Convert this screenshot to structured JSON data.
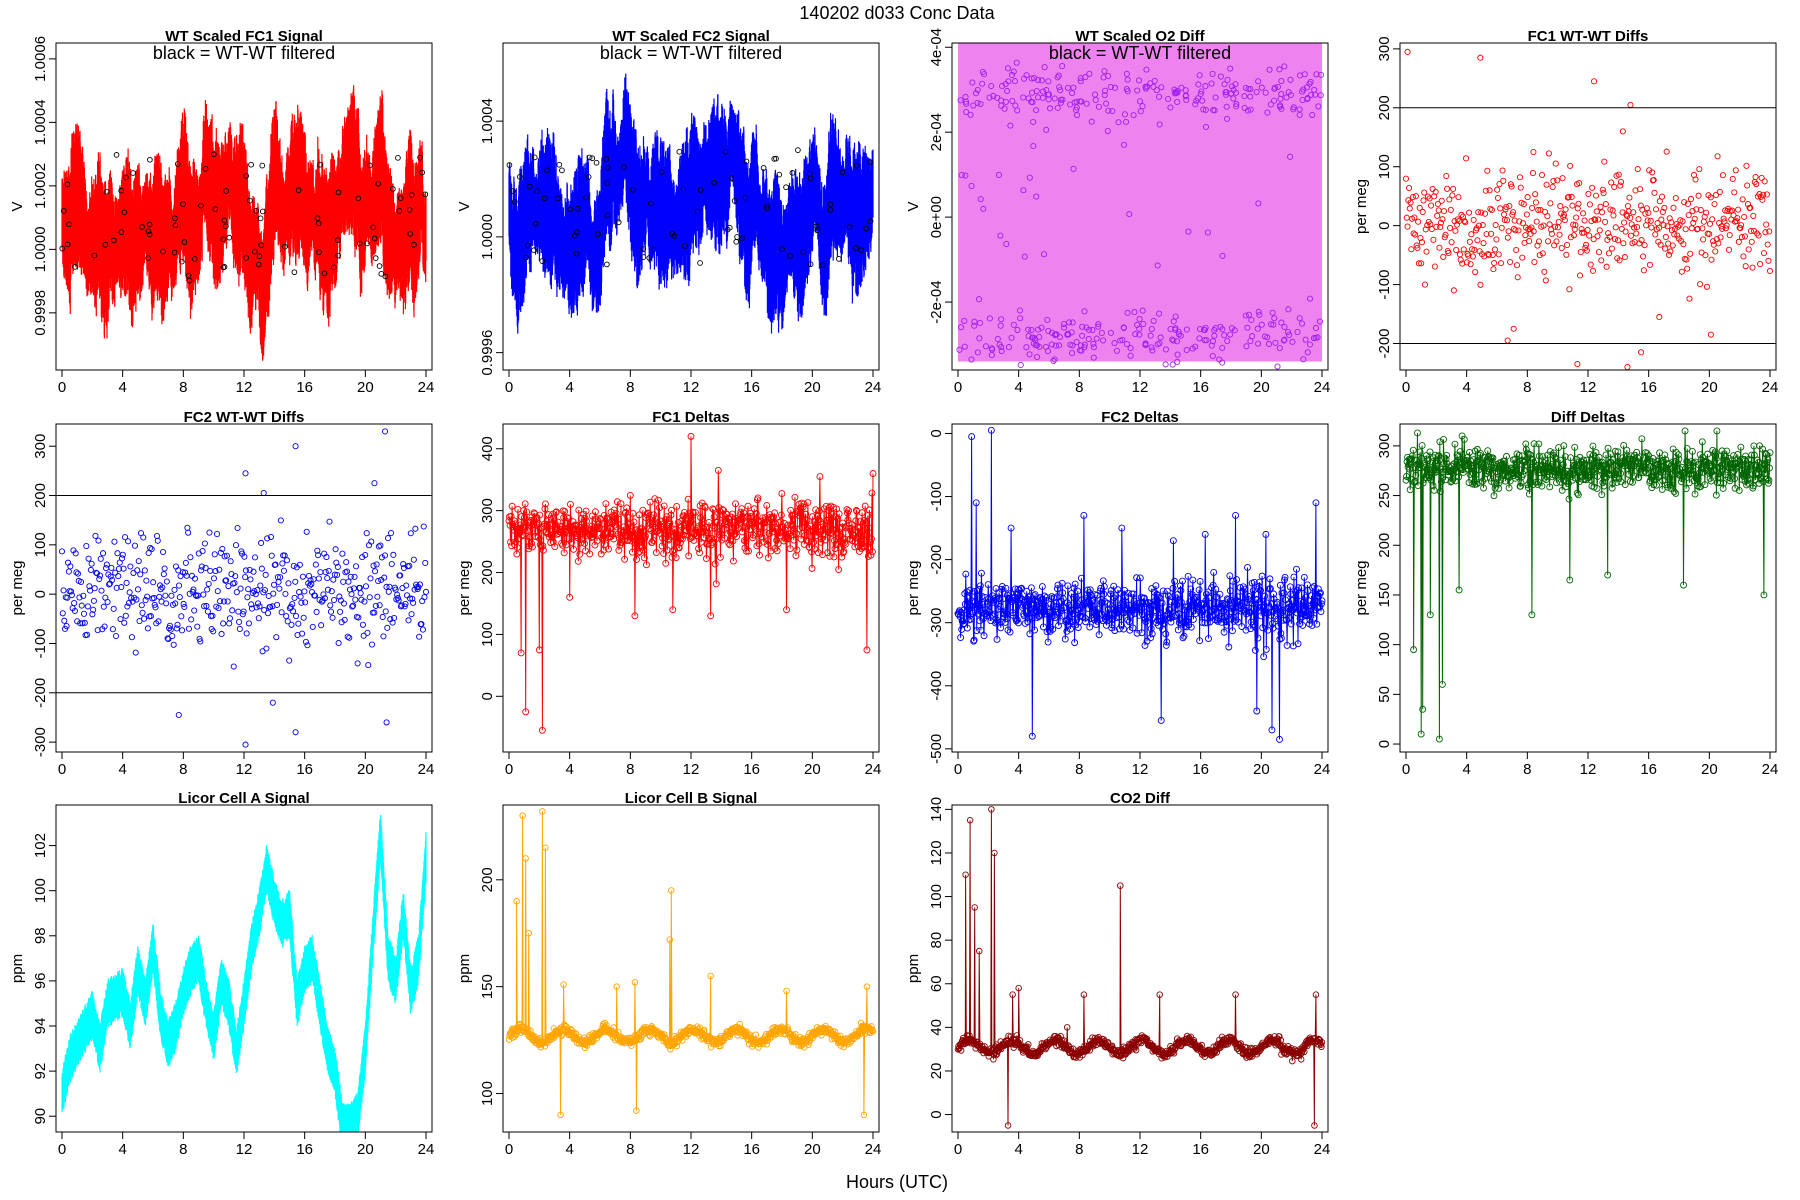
{
  "figure": {
    "title": "140202   d033   Conc Data",
    "xlabel": "Hours (UTC)"
  },
  "chart_data": [
    {
      "id": "p1",
      "type": "line",
      "title": "WT Scaled FC1 Signal",
      "overlay_text": "black = WT-WT filtered",
      "ylabel": "V",
      "xlim": [
        0,
        24
      ],
      "ylim": [
        0.99962,
        1.00065
      ],
      "xticks": [
        0,
        4,
        8,
        12,
        16,
        20,
        24
      ],
      "yticks": [
        0.9998,
        1.0,
        1.0002,
        1.0004,
        1.0006
      ],
      "ytick_labels": [
        "0.9998",
        "1.0000",
        "1.0002",
        "1.0004",
        "1.0006"
      ],
      "series": [
        {
          "color": "#ff0000",
          "style": "band",
          "center": 1.0001,
          "halfwidth": 0.00024,
          "noise": 7e-05,
          "seed": 11
        },
        {
          "color": "#000000",
          "style": "points",
          "center": 1.0001,
          "halfwidth": 0.0002,
          "n": 90,
          "seed": 12
        }
      ]
    },
    {
      "id": "p2",
      "type": "line",
      "title": "WT Scaled FC2 Signal",
      "overlay_text": "black = WT-WT filtered",
      "ylabel": "V",
      "xlim": [
        0,
        24
      ],
      "ylim": [
        0.99954,
        1.00067
      ],
      "xticks": [
        0,
        4,
        8,
        12,
        16,
        20,
        24
      ],
      "yticks": [
        0.9996,
        1.0,
        1.0004
      ],
      "ytick_labels": [
        "0.9996",
        "1.0000",
        "1.0004"
      ],
      "series": [
        {
          "color": "#0000ff",
          "style": "band",
          "center": 1.0001,
          "halfwidth": 0.00025,
          "noise": 8e-05,
          "seed": 21
        },
        {
          "color": "#000000",
          "style": "points",
          "center": 1.0001,
          "halfwidth": 0.0002,
          "n": 90,
          "seed": 22
        }
      ]
    },
    {
      "id": "p3",
      "type": "line",
      "title": "WT Scaled O2 Diff",
      "overlay_text": "black = WT-WT filtered",
      "ylabel": "V",
      "xlim": [
        0,
        24
      ],
      "ylim": [
        -0.00036,
        0.00041
      ],
      "xticks": [
        0,
        4,
        8,
        12,
        16,
        20,
        24
      ],
      "yticks": [
        -0.0002,
        0,
        0.0002,
        0.0004
      ],
      "ytick_labels": [
        "-2e-04",
        "0e+00",
        "2e-04",
        "4e-04"
      ],
      "series": [
        {
          "color": "#ee82ee",
          "style": "fill",
          "lo": -0.00034,
          "hi": 0.00041
        },
        {
          "color": "#a020f0",
          "style": "twobands",
          "upper": 0.00029,
          "lower": -0.00028,
          "spread": 3e-05,
          "n": 420,
          "seed": 31
        }
      ]
    },
    {
      "id": "p4",
      "type": "scatter",
      "title": "FC1 WT-WT Diffs",
      "ylabel": "per meg",
      "xlim": [
        0,
        24
      ],
      "ylim": [
        -245,
        310
      ],
      "xticks": [
        0,
        4,
        8,
        12,
        16,
        20,
        24
      ],
      "yticks": [
        -200,
        -100,
        0,
        100,
        200,
        300
      ],
      "ytick_labels": [
        "-200",
        "-100",
        "0",
        "100",
        "200",
        "300"
      ],
      "hlines": [
        200,
        -200
      ],
      "series": [
        {
          "color": "#ff0000",
          "style": "scatter",
          "center": 5,
          "sd": 45,
          "n": 480,
          "seed": 41,
          "extra": [
            [
              0.1,
              295
            ],
            [
              4.9,
              285
            ],
            [
              12.4,
              245
            ],
            [
              14.8,
              205
            ],
            [
              14.3,
              160
            ],
            [
              8.4,
              125
            ],
            [
              11.3,
              -235
            ],
            [
              14.6,
              -240
            ],
            [
              15.5,
              -215
            ],
            [
              6.7,
              -195
            ],
            [
              7.1,
              -175
            ],
            [
              16.7,
              -155
            ],
            [
              20.1,
              -185
            ]
          ]
        }
      ]
    },
    {
      "id": "p5",
      "type": "scatter",
      "title": "FC2 WT-WT Diffs",
      "ylabel": "per meg",
      "xlim": [
        0,
        24
      ],
      "ylim": [
        -320,
        345
      ],
      "xticks": [
        0,
        4,
        8,
        12,
        16,
        20,
        24
      ],
      "yticks": [
        -300,
        -200,
        -100,
        0,
        100,
        200,
        300
      ],
      "ytick_labels": [
        "-300",
        "-200",
        "-100",
        "0",
        "100",
        "200",
        "300"
      ],
      "hlines": [
        200,
        -200
      ],
      "series": [
        {
          "color": "#0000ff",
          "style": "scatter",
          "center": 5,
          "sd": 60,
          "n": 480,
          "seed": 51,
          "extra": [
            [
              21.3,
              330
            ],
            [
              15.4,
              300
            ],
            [
              12.1,
              245
            ],
            [
              20.6,
              225
            ],
            [
              13.3,
              205
            ],
            [
              7.7,
              -245
            ],
            [
              12.1,
              -305
            ],
            [
              15.4,
              -280
            ],
            [
              21.4,
              -260
            ],
            [
              13.9,
              -220
            ]
          ]
        }
      ]
    },
    {
      "id": "p6",
      "type": "line",
      "title": "FC1 Deltas",
      "ylabel": "per meg",
      "xlim": [
        0,
        24
      ],
      "ylim": [
        -90,
        440
      ],
      "xticks": [
        0,
        4,
        8,
        12,
        16,
        20,
        24
      ],
      "yticks": [
        0,
        100,
        200,
        300,
        400
      ],
      "ytick_labels": [
        "0",
        "100",
        "200",
        "300",
        "400"
      ],
      "series": [
        {
          "color": "#ff0000",
          "style": "walk",
          "base": 270,
          "noise": 22,
          "n": 700,
          "seed": 61,
          "drops": [
            [
              0.8,
              70
            ],
            [
              1.1,
              -25
            ],
            [
              2.2,
              -55
            ],
            [
              2.0,
              75
            ],
            [
              4.0,
              160
            ],
            [
              8.3,
              130
            ],
            [
              10.8,
              140
            ],
            [
              13.3,
              130
            ],
            [
              18.3,
              140
            ],
            [
              23.6,
              75
            ]
          ],
          "spikes": [
            [
              12.0,
              420
            ],
            [
              13.8,
              365
            ],
            [
              20.5,
              355
            ],
            [
              24.0,
              360
            ]
          ]
        }
      ]
    },
    {
      "id": "p7",
      "type": "line",
      "title": "FC2 Deltas",
      "ylabel": "per meg",
      "xlim": [
        0,
        24
      ],
      "ylim": [
        -505,
        15
      ],
      "xticks": [
        0,
        4,
        8,
        12,
        16,
        20,
        24
      ],
      "yticks": [
        -500,
        -400,
        -300,
        -200,
        -100,
        0
      ],
      "ytick_labels": [
        "-500",
        "-400",
        "-300",
        "-200",
        "-100",
        "0"
      ],
      "series": [
        {
          "color": "#0000ff",
          "style": "walk",
          "base": -278,
          "noise": 24,
          "n": 700,
          "seed": 71,
          "drops": [
            [
              4.9,
              -480
            ],
            [
              13.4,
              -455
            ],
            [
              21.2,
              -485
            ],
            [
              20.7,
              -470
            ],
            [
              19.7,
              -440
            ]
          ],
          "spikes": [
            [
              0.9,
              -5
            ],
            [
              2.2,
              5
            ],
            [
              1.2,
              -110
            ],
            [
              3.5,
              -150
            ],
            [
              8.3,
              -130
            ],
            [
              10.8,
              -150
            ],
            [
              18.3,
              -130
            ],
            [
              23.6,
              -110
            ],
            [
              16.3,
              -160
            ],
            [
              20.3,
              -160
            ],
            [
              14.2,
              -170
            ]
          ]
        }
      ]
    },
    {
      "id": "p8",
      "type": "line",
      "title": "Diff Deltas",
      "ylabel": "per meg",
      "xlim": [
        0,
        24
      ],
      "ylim": [
        -8,
        322
      ],
      "xticks": [
        0,
        4,
        8,
        12,
        16,
        20,
        24
      ],
      "yticks": [
        0,
        50,
        100,
        150,
        200,
        250,
        300
      ],
      "ytick_labels": [
        "0",
        "50",
        "100",
        "150",
        "200",
        "250",
        "300"
      ],
      "series": [
        {
          "color": "#006400",
          "style": "walk",
          "base": 278,
          "noise": 11,
          "n": 700,
          "seed": 81,
          "drops": [
            [
              1.0,
              10
            ],
            [
              1.1,
              35
            ],
            [
              2.2,
              5
            ],
            [
              2.4,
              60
            ],
            [
              0.5,
              95
            ],
            [
              3.5,
              155
            ],
            [
              8.3,
              130
            ],
            [
              10.8,
              165
            ],
            [
              13.3,
              170
            ],
            [
              18.3,
              160
            ],
            [
              23.6,
              150
            ],
            [
              1.6,
              130
            ]
          ],
          "spikes": [
            [
              18.4,
              315
            ],
            [
              20.5,
              315
            ],
            [
              3.7,
              310
            ]
          ]
        }
      ]
    },
    {
      "id": "p9",
      "type": "line",
      "title": "Licor Cell A Signal",
      "ylabel": "ppm",
      "xlim": [
        0,
        24
      ],
      "ylim": [
        89.3,
        103.8
      ],
      "xticks": [
        0,
        4,
        8,
        12,
        16,
        20,
        24
      ],
      "yticks": [
        90,
        92,
        94,
        96,
        98,
        100,
        102
      ],
      "ytick_labels": [
        "90",
        "92",
        "94",
        "96",
        "98",
        "100",
        "102"
      ],
      "series": [
        {
          "color": "#00ffff",
          "style": "path",
          "halfwidth": 1.0,
          "seed": 91,
          "knots": [
            [
              0,
              91
            ],
            [
              0.5,
              92.5
            ],
            [
              1,
              93.2
            ],
            [
              2,
              94.5
            ],
            [
              2.5,
              93
            ],
            [
              3,
              95
            ],
            [
              4,
              95.5
            ],
            [
              4.5,
              94
            ],
            [
              5,
              96.5
            ],
            [
              5.5,
              95
            ],
            [
              6,
              97.5
            ],
            [
              6.5,
              94.5
            ],
            [
              7,
              93.2
            ],
            [
              7.5,
              94
            ],
            [
              8,
              95.5
            ],
            [
              8.5,
              96.5
            ],
            [
              9,
              97
            ],
            [
              9.5,
              95
            ],
            [
              10,
              93.5
            ],
            [
              10.5,
              96
            ],
            [
              11,
              95
            ],
            [
              11.5,
              92.8
            ],
            [
              12,
              95
            ],
            [
              12.5,
              97.5
            ],
            [
              13,
              99
            ],
            [
              13.5,
              101
            ],
            [
              14,
              99.5
            ],
            [
              14.5,
              98.5
            ],
            [
              15,
              99
            ],
            [
              15.5,
              95
            ],
            [
              16,
              96.5
            ],
            [
              16.5,
              97
            ],
            [
              17,
              95
            ],
            [
              17.5,
              93
            ],
            [
              18,
              92
            ],
            [
              18.5,
              89.5
            ],
            [
              19,
              89.5
            ],
            [
              19.5,
              90
            ],
            [
              20,
              93
            ],
            [
              20.5,
              98
            ],
            [
              21,
              102.5
            ],
            [
              21.5,
              97
            ],
            [
              22,
              96
            ],
            [
              22.5,
              99
            ],
            [
              23,
              95.5
            ],
            [
              23.5,
              97
            ],
            [
              24,
              101.5
            ]
          ]
        }
      ]
    },
    {
      "id": "p10",
      "type": "line",
      "title": "Licor Cell B Signal",
      "ylabel": "ppm",
      "xlim": [
        0,
        24
      ],
      "ylim": [
        82,
        235
      ],
      "xticks": [
        0,
        4,
        8,
        12,
        16,
        20,
        24
      ],
      "yticks": [
        100,
        150,
        200
      ],
      "ytick_labels": [
        "100",
        "150",
        "200"
      ],
      "series": [
        {
          "color": "#ffa500",
          "style": "thick",
          "base": 127,
          "n": 700,
          "seed": 101,
          "drops": [
            [
              3.4,
              90
            ],
            [
              8.4,
              92
            ],
            [
              13.3,
              94
            ],
            [
              18.3,
              87
            ],
            [
              23.4,
              90
            ]
          ],
          "spikes": [
            [
              0.5,
              190
            ],
            [
              0.9,
              230
            ],
            [
              1.1,
              210
            ],
            [
              2.2,
              232
            ],
            [
              2.4,
              215
            ],
            [
              1.3,
              175
            ],
            [
              3.6,
              151
            ],
            [
              8.3,
              152
            ],
            [
              10.7,
              195
            ],
            [
              13.3,
              155
            ],
            [
              18.3,
              148
            ],
            [
              23.6,
              150
            ],
            [
              7.1,
              150
            ],
            [
              10.6,
              172
            ]
          ]
        }
      ]
    },
    {
      "id": "p11",
      "type": "line",
      "title": "CO2 Diff",
      "ylabel": "ppm",
      "xlim": [
        0,
        24
      ],
      "ylim": [
        -8,
        142
      ],
      "xticks": [
        0,
        4,
        8,
        12,
        16,
        20,
        24
      ],
      "yticks": [
        0,
        20,
        40,
        60,
        80,
        100,
        120,
        140
      ],
      "ytick_labels": [
        "0",
        "20",
        "40",
        "60",
        "80",
        "100",
        "120",
        "140"
      ],
      "series": [
        {
          "color": "#8b0000",
          "style": "thick",
          "base": 31,
          "n": 700,
          "seed": 111,
          "drops": [
            [
              3.3,
              -5
            ],
            [
              8.3,
              -5
            ],
            [
              13.3,
              -5
            ],
            [
              18.3,
              -5
            ],
            [
              23.5,
              -5
            ]
          ],
          "spikes": [
            [
              0.5,
              110
            ],
            [
              0.8,
              135
            ],
            [
              1.1,
              95
            ],
            [
              2.2,
              140
            ],
            [
              2.4,
              120
            ],
            [
              1.4,
              75
            ],
            [
              3.6,
              55
            ],
            [
              8.3,
              55
            ],
            [
              10.7,
              105
            ],
            [
              13.3,
              55
            ],
            [
              18.3,
              55
            ],
            [
              23.6,
              55
            ],
            [
              7.2,
              40
            ],
            [
              4.0,
              58
            ]
          ]
        }
      ]
    }
  ]
}
